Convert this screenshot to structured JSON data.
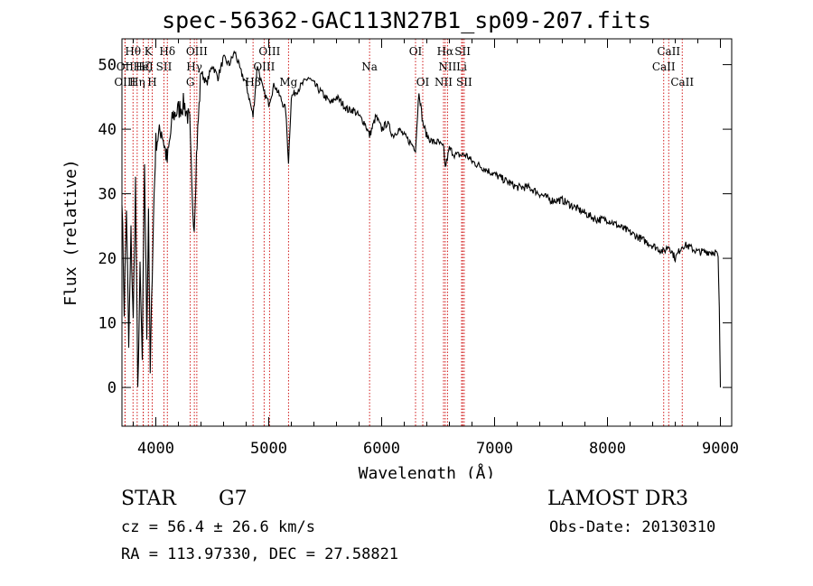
{
  "header": {
    "title": "spec-56362-GAC113N27B1_sp09-207.fits"
  },
  "info": {
    "object_class": "STAR",
    "subclass": "G7",
    "survey": "LAMOST DR3",
    "redshift": "cz = 56.4 ± 26.6 km/s",
    "obs_date": "Obs-Date: 20130310",
    "coords": "RA = 113.97330, DEC =  27.58821"
  },
  "chart_data": {
    "type": "line",
    "title": "spec-56362-GAC113N27B1_sp09-207.fits",
    "xlabel": "Wavelength (Å)",
    "ylabel": "Flux (relative)",
    "xlim": [
      3700,
      9100
    ],
    "ylim": [
      -6,
      54
    ],
    "x_ticks": [
      4000,
      5000,
      6000,
      7000,
      8000,
      9000
    ],
    "y_ticks": [
      0,
      10,
      20,
      30,
      40,
      50
    ],
    "line_color": "#000000",
    "marker_color": "#cc0000",
    "series": [
      {
        "name": "flux",
        "x": [
          3700,
          3720,
          3740,
          3760,
          3780,
          3800,
          3820,
          3840,
          3860,
          3880,
          3900,
          3920,
          3935,
          3950,
          3968,
          3985,
          4000,
          4050,
          4101,
          4150,
          4200,
          4250,
          4300,
          4320,
          4340,
          4360,
          4400,
          4450,
          4500,
          4550,
          4600,
          4650,
          4700,
          4750,
          4800,
          4861,
          4900,
          4950,
          5000,
          5050,
          5100,
          5150,
          5175,
          5200,
          5250,
          5300,
          5350,
          5400,
          5450,
          5500,
          5550,
          5600,
          5650,
          5700,
          5750,
          5800,
          5850,
          5893,
          5950,
          6000,
          6050,
          6100,
          6150,
          6200,
          6250,
          6300,
          6330,
          6364,
          6400,
          6450,
          6500,
          6550,
          6563,
          6600,
          6650,
          6700,
          6750,
          6800,
          6900,
          7000,
          7100,
          7200,
          7300,
          7400,
          7500,
          7600,
          7700,
          7800,
          7900,
          8000,
          8100,
          8200,
          8300,
          8400,
          8498,
          8542,
          8600,
          8662,
          8700,
          8800,
          8900,
          8960,
          8980,
          8990,
          9000
        ],
        "y": [
          30,
          12,
          28,
          6,
          24,
          10,
          32,
          -1,
          18,
          4,
          35,
          8,
          28,
          2,
          18,
          30,
          38,
          40,
          35,
          42,
          43,
          44,
          41,
          30,
          25,
          36,
          49,
          47,
          50,
          48,
          51,
          50,
          52,
          49,
          47,
          42,
          50,
          46,
          44,
          47,
          45,
          43,
          35,
          45,
          46,
          47,
          48,
          47,
          46,
          45,
          44,
          45,
          44,
          43,
          43,
          42,
          41,
          39,
          42,
          40,
          41,
          39,
          40,
          39,
          38,
          37,
          46,
          41,
          39,
          38,
          38,
          37,
          34,
          37,
          36,
          36,
          36,
          35,
          34,
          33,
          32,
          31,
          31,
          30,
          29,
          29,
          28,
          27,
          26,
          26,
          25,
          24,
          23,
          22,
          21,
          22,
          20,
          22,
          22,
          21,
          21,
          21,
          20,
          12,
          0
        ]
      }
    ],
    "line_markers": [
      {
        "label": "Hθ",
        "wavelength": 3798,
        "row": 0
      },
      {
        "label": "OII",
        "wavelength": 3727,
        "row": 1
      },
      {
        "label": "OIII",
        "wavelength": 3727,
        "row": 2
      },
      {
        "label": "Hη",
        "wavelength": 3835,
        "row": 2
      },
      {
        "label": "Hζ",
        "wavelength": 3889,
        "row": 1
      },
      {
        "label": "HeI",
        "wavelength": 3889,
        "row": 1
      },
      {
        "label": "K",
        "wavelength": 3934,
        "row": 0
      },
      {
        "label": "SII",
        "wavelength": 4072,
        "row": 1
      },
      {
        "label": "H",
        "wavelength": 3968,
        "row": 2
      },
      {
        "label": "Hδ",
        "wavelength": 4102,
        "row": 0
      },
      {
        "label": "OIII",
        "wavelength": 4363,
        "row": 0
      },
      {
        "label": "Hγ",
        "wavelength": 4341,
        "row": 1
      },
      {
        "label": "G",
        "wavelength": 4305,
        "row": 2
      },
      {
        "label": "OIII",
        "wavelength": 5007,
        "row": 0
      },
      {
        "label": "OIII",
        "wavelength": 4959,
        "row": 1
      },
      {
        "label": "Hβ",
        "wavelength": 4861,
        "row": 2
      },
      {
        "label": "Mg",
        "wavelength": 5175,
        "row": 2
      },
      {
        "label": "Na",
        "wavelength": 5893,
        "row": 1
      },
      {
        "label": "OI",
        "wavelength": 6300,
        "row": 0
      },
      {
        "label": "OI",
        "wavelength": 6364,
        "row": 2
      },
      {
        "label": "Hα",
        "wavelength": 6563,
        "row": 0
      },
      {
        "label": "NII",
        "wavelength": 6583,
        "row": 1
      },
      {
        "label": "NII",
        "wavelength": 6548,
        "row": 2
      },
      {
        "label": "SII",
        "wavelength": 6717,
        "row": 0
      },
      {
        "label": "Li",
        "wavelength": 6708,
        "row": 1
      },
      {
        "label": "SII",
        "wavelength": 6731,
        "row": 2
      },
      {
        "label": "CaII",
        "wavelength": 8542,
        "row": 0
      },
      {
        "label": "CaII",
        "wavelength": 8498,
        "row": 1
      },
      {
        "label": "CaII",
        "wavelength": 8662,
        "row": 2
      }
    ]
  }
}
